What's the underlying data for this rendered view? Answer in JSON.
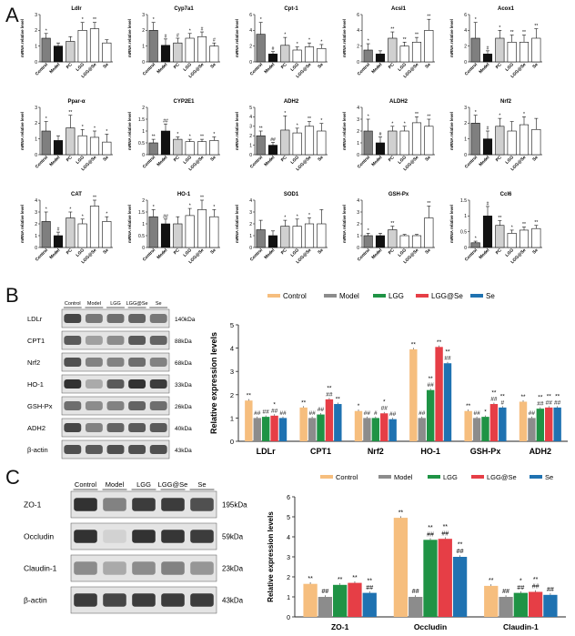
{
  "panel_letters": [
    "A",
    "B",
    "C"
  ],
  "chart_data": [
    {
      "type": "bar",
      "panel": "A",
      "categories": [
        "Control",
        "Model",
        "PC",
        "LGG",
        "LGG@Se",
        "Se"
      ],
      "ylabel": "mRNA relative level",
      "bar_colors": [
        "#7f7f7f",
        "#111111",
        "#d0d0d0",
        "#ffffff",
        "#ffffff",
        "#ffffff"
      ],
      "subplots": [
        {
          "title": "Ldlr",
          "ylim": [
            0,
            3
          ],
          "yticks": [
            0,
            1,
            2,
            3
          ],
          "values": [
            1.5,
            1.0,
            1.3,
            2.0,
            2.1,
            1.2
          ],
          "errors": [
            0.3,
            0.2,
            0.3,
            0.5,
            0.4,
            0.2
          ],
          "marks": [
            "*",
            "",
            "",
            "*",
            "**",
            ""
          ]
        },
        {
          "title": "Cyp7a1",
          "ylim": [
            0,
            3
          ],
          "yticks": [
            0,
            1,
            2,
            3
          ],
          "values": [
            2.0,
            1.05,
            1.2,
            1.5,
            1.6,
            1.0
          ],
          "errors": [
            0.5,
            0.4,
            0.3,
            0.3,
            0.3,
            0.2
          ],
          "marks": [
            "*",
            "#",
            "#",
            "*",
            "#",
            "#"
          ]
        },
        {
          "title": "Cpt-1",
          "ylim": [
            0,
            6
          ],
          "yticks": [
            0,
            2,
            4,
            6
          ],
          "values": [
            3.5,
            1.0,
            2.1,
            1.5,
            1.9,
            1.7
          ],
          "errors": [
            1.5,
            0.3,
            1.0,
            0.4,
            0.5,
            0.5
          ],
          "marks": [
            "*",
            "#",
            "*",
            "*",
            "*",
            "*"
          ]
        },
        {
          "title": "Acsl1",
          "ylim": [
            0,
            6
          ],
          "yticks": [
            0,
            2,
            4,
            6
          ],
          "values": [
            1.5,
            1.0,
            3.0,
            2.0,
            2.5,
            4.0
          ],
          "errors": [
            0.8,
            0.4,
            0.8,
            0.5,
            0.6,
            1.4
          ],
          "marks": [
            "*",
            "",
            "**",
            "**",
            "**",
            "**"
          ]
        },
        {
          "title": "Acox1",
          "ylim": [
            0,
            6
          ],
          "yticks": [
            0,
            2,
            4,
            6
          ],
          "values": [
            3.0,
            1.0,
            3.0,
            2.5,
            2.5,
            3.0
          ],
          "errors": [
            2.0,
            0.4,
            1.0,
            0.9,
            0.9,
            1.2
          ],
          "marks": [
            "*",
            "#",
            "*",
            "**",
            "**",
            "**"
          ]
        },
        {
          "title": "Ppar-α",
          "ylim": [
            0,
            3
          ],
          "yticks": [
            0,
            1,
            2,
            3
          ],
          "values": [
            1.5,
            0.9,
            1.7,
            1.2,
            1.1,
            0.8
          ],
          "errors": [
            0.6,
            0.3,
            0.8,
            0.4,
            0.4,
            0.5
          ],
          "marks": [
            "*",
            "",
            "**",
            "*",
            "*",
            "*"
          ]
        },
        {
          "title": "CYP2E1",
          "ylim": [
            0,
            2.0
          ],
          "yticks": [
            0.0,
            0.5,
            1.0,
            1.5,
            2.0
          ],
          "values": [
            0.5,
            1.0,
            0.65,
            0.55,
            0.55,
            0.6
          ],
          "errors": [
            0.15,
            0.3,
            0.1,
            0.1,
            0.1,
            0.15
          ],
          "marks": [
            "**",
            "##",
            "*",
            "*",
            "**",
            "*"
          ]
        },
        {
          "title": "ADH2",
          "ylim": [
            0,
            5
          ],
          "yticks": [
            0,
            1,
            2,
            3,
            4,
            5
          ],
          "values": [
            2.0,
            1.0,
            2.6,
            2.3,
            3.0,
            2.5
          ],
          "errors": [
            0.5,
            0.3,
            1.5,
            0.5,
            0.5,
            0.8
          ],
          "marks": [
            "**",
            "##",
            "*",
            "*",
            "**",
            "*"
          ]
        },
        {
          "title": "ALDH2",
          "ylim": [
            0,
            4
          ],
          "yticks": [
            0,
            1,
            2,
            3,
            4
          ],
          "values": [
            2.0,
            1.0,
            2.0,
            2.0,
            2.7,
            2.4
          ],
          "errors": [
            1.0,
            0.5,
            0.4,
            0.4,
            0.5,
            0.6
          ],
          "marks": [
            "*",
            "#",
            "*",
            "*",
            "**",
            "**"
          ]
        },
        {
          "title": "Nrf2",
          "ylim": [
            0,
            3
          ],
          "yticks": [
            0,
            1,
            2,
            3
          ],
          "values": [
            2.0,
            1.0,
            1.8,
            1.5,
            1.9,
            1.6
          ],
          "errors": [
            0.5,
            0.5,
            0.5,
            0.6,
            0.5,
            0.7
          ],
          "marks": [
            "*",
            "#",
            "*",
            "",
            "*",
            ""
          ]
        },
        {
          "title": "CAT",
          "ylim": [
            0,
            4
          ],
          "yticks": [
            0,
            1,
            2,
            3,
            4
          ],
          "values": [
            2.2,
            1.0,
            2.5,
            2.0,
            3.5,
            2.2
          ],
          "errors": [
            0.8,
            0.3,
            0.5,
            0.4,
            0.8,
            0.4
          ],
          "marks": [
            "*",
            "#",
            "*",
            "*",
            "**",
            "*"
          ]
        },
        {
          "title": "HO-1",
          "ylim": [
            0,
            2.0
          ],
          "yticks": [
            0.0,
            0.5,
            1.0,
            1.5,
            2.0
          ],
          "values": [
            1.3,
            1.0,
            1.0,
            1.35,
            1.6,
            1.3
          ],
          "errors": [
            0.3,
            0.2,
            0.3,
            0.3,
            0.4,
            0.3
          ],
          "marks": [
            "*",
            "##",
            "",
            "*",
            "**",
            "*"
          ]
        },
        {
          "title": "SOD1",
          "ylim": [
            0,
            4
          ],
          "yticks": [
            0,
            1,
            2,
            3,
            4
          ],
          "values": [
            1.5,
            1.0,
            1.8,
            1.8,
            2.0,
            2.0
          ],
          "errors": [
            0.8,
            0.4,
            0.5,
            0.6,
            0.5,
            1.2
          ],
          "marks": [
            "",
            "",
            "*",
            "*",
            "*",
            ""
          ]
        },
        {
          "title": "GSH-Px",
          "ylim": [
            0,
            4
          ],
          "yticks": [
            0,
            1,
            2,
            3,
            4
          ],
          "values": [
            1.0,
            1.0,
            1.5,
            1.0,
            1.0,
            2.5
          ],
          "errors": [
            0.2,
            0.2,
            0.3,
            0.1,
            0.1,
            1.0
          ],
          "marks": [
            "*",
            "",
            "**",
            "",
            "",
            "**"
          ]
        },
        {
          "title": "Ccl6",
          "ylim": [
            0,
            1.5
          ],
          "yticks": [
            0.0,
            0.5,
            1.0,
            1.5
          ],
          "values": [
            0.15,
            1.0,
            0.7,
            0.45,
            0.55,
            0.6
          ],
          "errors": [
            0.05,
            0.3,
            0.15,
            0.1,
            0.1,
            0.1
          ],
          "marks": [
            "*",
            "#",
            "**",
            "*",
            "**",
            "**"
          ]
        }
      ]
    },
    {
      "type": "bar",
      "panel": "B",
      "legend": [
        "Control",
        "Model",
        "LGG",
        "LGG@Se",
        "Se"
      ],
      "colors": [
        "#f6be7e",
        "#8c8c8c",
        "#1f9345",
        "#e63e46",
        "#1f72b1"
      ],
      "categories": [
        "LDLr",
        "CPT1",
        "Nrf2",
        "HO-1",
        "GSH-Px",
        "ADH2"
      ],
      "ylabel": "Relative expression levels",
      "ylim": [
        0,
        5
      ],
      "yticks": [
        0,
        1,
        2,
        3,
        4,
        5
      ],
      "series": [
        {
          "name": "Control",
          "values": [
            1.75,
            1.45,
            1.3,
            3.95,
            1.3,
            1.7
          ],
          "marks": [
            "**",
            "**",
            "*",
            "**",
            "**",
            "**"
          ]
        },
        {
          "name": "Model",
          "values": [
            1.0,
            1.0,
            1.0,
            1.0,
            1.0,
            1.0
          ],
          "marks": [
            "##",
            "##",
            "##",
            "##",
            "##",
            "##"
          ]
        },
        {
          "name": "LGG",
          "values": [
            1.05,
            1.15,
            1.0,
            2.2,
            1.05,
            1.4
          ],
          "marks": [
            "##",
            "##",
            "#",
            "**\n##",
            "*",
            "**\n##"
          ]
        },
        {
          "name": "LGG@Se",
          "values": [
            1.1,
            1.8,
            1.2,
            4.05,
            1.6,
            1.45
          ],
          "marks": [
            "*\n##",
            "**\n##",
            "*\n##",
            "**",
            "**\n##",
            "**\n##"
          ]
        },
        {
          "name": "Se",
          "values": [
            1.0,
            1.6,
            0.95,
            3.35,
            1.45,
            1.45
          ],
          "marks": [
            "##",
            "**",
            "##",
            "**\n##",
            "**\n#",
            "**\n##"
          ]
        }
      ],
      "blot_lanes": [
        "Control",
        "Model",
        "LGG",
        "LGG@Se",
        "Se"
      ],
      "blot_rows": [
        {
          "name": "LDLr",
          "size": "140kDa"
        },
        {
          "name": "CPT1",
          "size": "88kDa"
        },
        {
          "name": "Nrf2",
          "size": "68kDa"
        },
        {
          "name": "HO-1",
          "size": "33kDa"
        },
        {
          "name": "GSH-Px",
          "size": "26kDa"
        },
        {
          "name": "ADH2",
          "size": "40kDa"
        },
        {
          "name": "β-actin",
          "size": "43kDa"
        }
      ]
    },
    {
      "type": "bar",
      "panel": "C",
      "legend": [
        "Control",
        "Model",
        "LGG",
        "LGG@Se",
        "Se"
      ],
      "colors": [
        "#f6be7e",
        "#8c8c8c",
        "#1f9345",
        "#e63e46",
        "#1f72b1"
      ],
      "categories": [
        "ZO-1",
        "Occludin",
        "Claudin-1"
      ],
      "ylabel": "Relative expression levels",
      "ylim": [
        0,
        6
      ],
      "yticks": [
        0,
        1,
        2,
        3,
        4,
        5,
        6
      ],
      "series": [
        {
          "name": "Control",
          "values": [
            1.65,
            4.95,
            1.55
          ],
          "marks": [
            "**",
            "**",
            "**"
          ]
        },
        {
          "name": "Model",
          "values": [
            1.0,
            1.0,
            1.0
          ],
          "marks": [
            "##",
            "##",
            "##"
          ]
        },
        {
          "name": "LGG",
          "values": [
            1.6,
            3.85,
            1.2
          ],
          "marks": [
            "**",
            "**\n##",
            "*\n##"
          ]
        },
        {
          "name": "LGG@Se",
          "values": [
            1.7,
            3.9,
            1.25
          ],
          "marks": [
            "**",
            "**\n##",
            "**\n##"
          ]
        },
        {
          "name": "Se",
          "values": [
            1.2,
            3.0,
            1.1
          ],
          "marks": [
            "**\n##",
            "**\n##",
            "##"
          ]
        }
      ],
      "blot_lanes": [
        "Control",
        "Model",
        "LGG",
        "LGG@Se",
        "Se"
      ],
      "blot_rows": [
        {
          "name": "ZO-1",
          "size": "195kDa"
        },
        {
          "name": "Occludin",
          "size": "59kDa"
        },
        {
          "name": "Claudin-1",
          "size": "23kDa"
        },
        {
          "name": "β-actin",
          "size": "43kDa"
        }
      ]
    }
  ]
}
